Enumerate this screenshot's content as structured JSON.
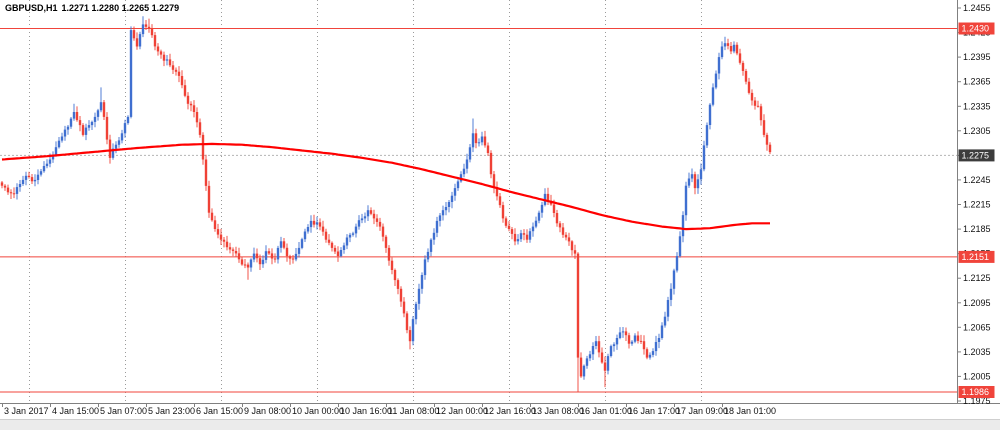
{
  "header": {
    "symbol_timeframe": "GBPUSD,H1",
    "quote": "1.2271 1.2280 1.2265 1.2279"
  },
  "chart_data": {
    "type": "candlestick",
    "symbol": "GBPUSD",
    "timeframe": "H1",
    "title": "GBPUSD,H1 1.2271 1.2280 1.2265 1.2279",
    "current_bar": {
      "open": 1.2271,
      "high": 1.228,
      "low": 1.2265,
      "close": 1.2279
    },
    "bid_price": 1.2275,
    "bid_label": "1.2275",
    "price_axis": {
      "labels": [
        "1.2455",
        "1.2425",
        "1.2395",
        "1.2365",
        "1.2335",
        "1.2305",
        "1.2275",
        "1.2245",
        "1.2215",
        "1.2185",
        "1.2155",
        "1.2125",
        "1.2095",
        "1.2065",
        "1.2035",
        "1.2005",
        "1.1975"
      ]
    },
    "time_axis": {
      "labels": [
        {
          "bar": 0,
          "text": "3 Jan 2017"
        },
        {
          "bar": 16,
          "text": "4 Jan 15:00"
        },
        {
          "bar": 32,
          "text": "5 Jan 07:00"
        },
        {
          "bar": 48,
          "text": "5 Jan 23:00"
        },
        {
          "bar": 64,
          "text": "6 Jan 15:00"
        },
        {
          "bar": 80,
          "text": "9 Jan 08:00"
        },
        {
          "bar": 96,
          "text": "10 Jan 00:00"
        },
        {
          "bar": 112,
          "text": "10 Jan 16:00"
        },
        {
          "bar": 128,
          "text": "11 Jan 08:00"
        },
        {
          "bar": 144,
          "text": "12 Jan 00:00"
        },
        {
          "bar": 160,
          "text": "12 Jan 16:00"
        },
        {
          "bar": 176,
          "text": "13 Jan 08:00"
        },
        {
          "bar": 192,
          "text": "16 Jan 01:00"
        },
        {
          "bar": 208,
          "text": "16 Jan 17:00"
        },
        {
          "bar": 224,
          "text": "17 Jan 09:00"
        },
        {
          "bar": 240,
          "text": "18 Jan 01:00"
        }
      ]
    },
    "horizontal_levels": [
      {
        "price": 1.243,
        "label": "1.2430"
      },
      {
        "price": 1.2151,
        "label": "1.2151"
      },
      {
        "price": 1.1986,
        "label": "1.1986"
      }
    ],
    "day_separator_bars": [
      9,
      41,
      73,
      105,
      137,
      169,
      201,
      233
    ],
    "bars_total": 257,
    "candle_close_anchors": [
      [
        0,
        1.2238
      ],
      [
        2,
        1.223
      ],
      [
        4,
        1.2228
      ],
      [
        6,
        1.224
      ],
      [
        8,
        1.225
      ],
      [
        11,
        1.2245
      ],
      [
        14,
        1.2262
      ],
      [
        16,
        1.227
      ],
      [
        18,
        1.2285
      ],
      [
        20,
        1.2298
      ],
      [
        22,
        1.231
      ],
      [
        24,
        1.2328
      ],
      [
        26,
        1.2312
      ],
      [
        27,
        1.23
      ],
      [
        29,
        1.2312
      ],
      [
        31,
        1.2322
      ],
      [
        33,
        1.234
      ],
      [
        34,
        1.2322
      ],
      [
        36,
        1.2272
      ],
      [
        38,
        1.2288
      ],
      [
        40,
        1.2302
      ],
      [
        42,
        1.2322
      ],
      [
        43,
        1.2428
      ],
      [
        45,
        1.2408
      ],
      [
        47,
        1.2435
      ],
      [
        49,
        1.243
      ],
      [
        51,
        1.2408
      ],
      [
        53,
        1.2398
      ],
      [
        56,
        1.2385
      ],
      [
        59,
        1.2372
      ],
      [
        62,
        1.2338
      ],
      [
        64,
        1.2328
      ],
      [
        66,
        1.23
      ],
      [
        67,
        1.227
      ],
      [
        69,
        1.2205
      ],
      [
        71,
        1.2185
      ],
      [
        73,
        1.2172
      ],
      [
        76,
        1.216
      ],
      [
        79,
        1.2148
      ],
      [
        82,
        1.2138
      ],
      [
        84,
        1.2155
      ],
      [
        86,
        1.2142
      ],
      [
        88,
        1.2158
      ],
      [
        91,
        1.2148
      ],
      [
        93,
        1.217
      ],
      [
        95,
        1.2152
      ],
      [
        97,
        1.2148
      ],
      [
        99,
        1.2162
      ],
      [
        101,
        1.2182
      ],
      [
        103,
        1.2195
      ],
      [
        106,
        1.2188
      ],
      [
        108,
        1.2172
      ],
      [
        110,
        1.2162
      ],
      [
        112,
        1.2152
      ],
      [
        114,
        1.2165
      ],
      [
        116,
        1.2178
      ],
      [
        118,
        1.2188
      ],
      [
        120,
        1.2198
      ],
      [
        122,
        1.2208
      ],
      [
        124,
        1.2198
      ],
      [
        126,
        1.2188
      ],
      [
        128,
        1.2162
      ],
      [
        130,
        1.2135
      ],
      [
        132,
        1.2112
      ],
      [
        134,
        1.2082
      ],
      [
        136,
        1.2048
      ],
      [
        137,
        1.2075
      ],
      [
        139,
        1.2112
      ],
      [
        141,
        1.2148
      ],
      [
        143,
        1.2172
      ],
      [
        145,
        1.2195
      ],
      [
        147,
        1.2208
      ],
      [
        149,
        1.2218
      ],
      [
        151,
        1.2235
      ],
      [
        153,
        1.2252
      ],
      [
        155,
        1.227
      ],
      [
        157,
        1.2302
      ],
      [
        158,
        1.229
      ],
      [
        160,
        1.2298
      ],
      [
        162,
        1.2278
      ],
      [
        163,
        1.2252
      ],
      [
        165,
        1.2225
      ],
      [
        167,
        1.2198
      ],
      [
        169,
        1.2185
      ],
      [
        171,
        1.217
      ],
      [
        173,
        1.218
      ],
      [
        175,
        1.2172
      ],
      [
        177,
        1.2188
      ],
      [
        179,
        1.2205
      ],
      [
        181,
        1.2228
      ],
      [
        183,
        1.2215
      ],
      [
        185,
        1.2192
      ],
      [
        187,
        1.2178
      ],
      [
        189,
        1.217
      ],
      [
        191,
        1.2155
      ],
      [
        192,
        1.2028
      ],
      [
        193,
        1.2005
      ],
      [
        194,
        1.2018
      ],
      [
        196,
        1.2032
      ],
      [
        198,
        1.2048
      ],
      [
        200,
        1.2022
      ],
      [
        201,
        1.2012
      ],
      [
        203,
        1.2042
      ],
      [
        205,
        1.2052
      ],
      [
        207,
        1.206
      ],
      [
        209,
        1.2045
      ],
      [
        211,
        1.2055
      ],
      [
        213,
        1.2048
      ],
      [
        215,
        1.2028
      ],
      [
        217,
        1.2036
      ],
      [
        219,
        1.2052
      ],
      [
        221,
        1.2078
      ],
      [
        223,
        1.2112
      ],
      [
        225,
        1.2152
      ],
      [
        227,
        1.2202
      ],
      [
        228,
        1.2238
      ],
      [
        230,
        1.2252
      ],
      [
        231,
        1.2235
      ],
      [
        233,
        1.2258
      ],
      [
        235,
        1.2312
      ],
      [
        237,
        1.2358
      ],
      [
        239,
        1.2395
      ],
      [
        240,
        1.2408
      ],
      [
        241,
        1.2412
      ],
      [
        243,
        1.2402
      ],
      [
        244,
        1.241
      ],
      [
        246,
        1.2388
      ],
      [
        248,
        1.2365
      ],
      [
        250,
        1.2342
      ],
      [
        252,
        1.2335
      ],
      [
        253,
        1.2318
      ],
      [
        254,
        1.23
      ],
      [
        255,
        1.2288
      ],
      [
        256,
        1.2279
      ]
    ],
    "wick_overrides": {
      "24": {
        "high": 1.2338
      },
      "33": {
        "high": 1.2358
      },
      "47": {
        "high": 1.2445
      },
      "49": {
        "high": 1.2442
      },
      "82": {
        "low": 1.2123
      },
      "136": {
        "low": 1.2038
      },
      "157": {
        "high": 1.232
      },
      "192": {
        "low": 1.1986
      },
      "201": {
        "low": 1.1992
      },
      "241": {
        "high": 1.242
      }
    },
    "ma_anchors": [
      [
        0,
        1.227
      ],
      [
        15,
        1.2274
      ],
      [
        30,
        1.2279
      ],
      [
        45,
        1.2284
      ],
      [
        60,
        1.2288
      ],
      [
        70,
        1.2289
      ],
      [
        80,
        1.2288
      ],
      [
        90,
        1.2285
      ],
      [
        100,
        1.2281
      ],
      [
        110,
        1.2277
      ],
      [
        120,
        1.2272
      ],
      [
        130,
        1.2266
      ],
      [
        140,
        1.2258
      ],
      [
        150,
        1.2249
      ],
      [
        160,
        1.224
      ],
      [
        170,
        1.223
      ],
      [
        180,
        1.2221
      ],
      [
        190,
        1.2212
      ],
      [
        200,
        1.2202
      ],
      [
        210,
        1.2194
      ],
      [
        220,
        1.2188
      ],
      [
        228,
        1.2185
      ],
      [
        236,
        1.2186
      ],
      [
        244,
        1.219
      ],
      [
        250,
        1.2192
      ],
      [
        256,
        1.2192
      ]
    ],
    "colors": {
      "up": "#3f6fd0",
      "down": "#ef4136",
      "ma_line": "#ff0000",
      "level": "#f0443b",
      "bid_badge_bg": "#3c3c3c",
      "badge_text": "#ffffff",
      "axis": "#808080",
      "grid": "#9a9a9a",
      "bid_line": "#b4b4b4",
      "text": "#111111",
      "background": "#ffffff",
      "footer": "#ebebeb"
    }
  }
}
